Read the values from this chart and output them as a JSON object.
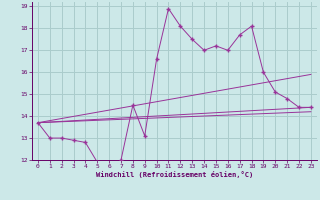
{
  "xlabel": "Windchill (Refroidissement éolien,°C)",
  "bg_color": "#cce8e8",
  "line_color": "#993399",
  "grid_color": "#aacccc",
  "text_color": "#660066",
  "xlim": [
    -0.5,
    23.5
  ],
  "ylim": [
    12,
    19.2
  ],
  "yticks": [
    12,
    13,
    14,
    15,
    16,
    17,
    18,
    19
  ],
  "xticks": [
    0,
    1,
    2,
    3,
    4,
    5,
    6,
    7,
    8,
    9,
    10,
    11,
    12,
    13,
    14,
    15,
    16,
    17,
    18,
    19,
    20,
    21,
    22,
    23
  ],
  "main_x": [
    0,
    1,
    2,
    3,
    4,
    5,
    6,
    7,
    8,
    9,
    10,
    11,
    12,
    13,
    14,
    15,
    16,
    17,
    18,
    19,
    20,
    21,
    22,
    23
  ],
  "main_y": [
    13.7,
    13.0,
    13.0,
    12.9,
    12.8,
    11.9,
    11.8,
    12.0,
    14.5,
    13.1,
    16.6,
    18.9,
    18.1,
    17.5,
    17.0,
    17.2,
    17.0,
    17.7,
    18.1,
    16.0,
    15.1,
    14.8,
    14.4,
    14.4
  ],
  "trend_lines": [
    {
      "x": [
        0,
        23
      ],
      "y": [
        13.7,
        15.9
      ]
    },
    {
      "x": [
        0,
        23
      ],
      "y": [
        13.7,
        14.4
      ]
    },
    {
      "x": [
        0,
        23
      ],
      "y": [
        13.7,
        14.2
      ]
    }
  ]
}
